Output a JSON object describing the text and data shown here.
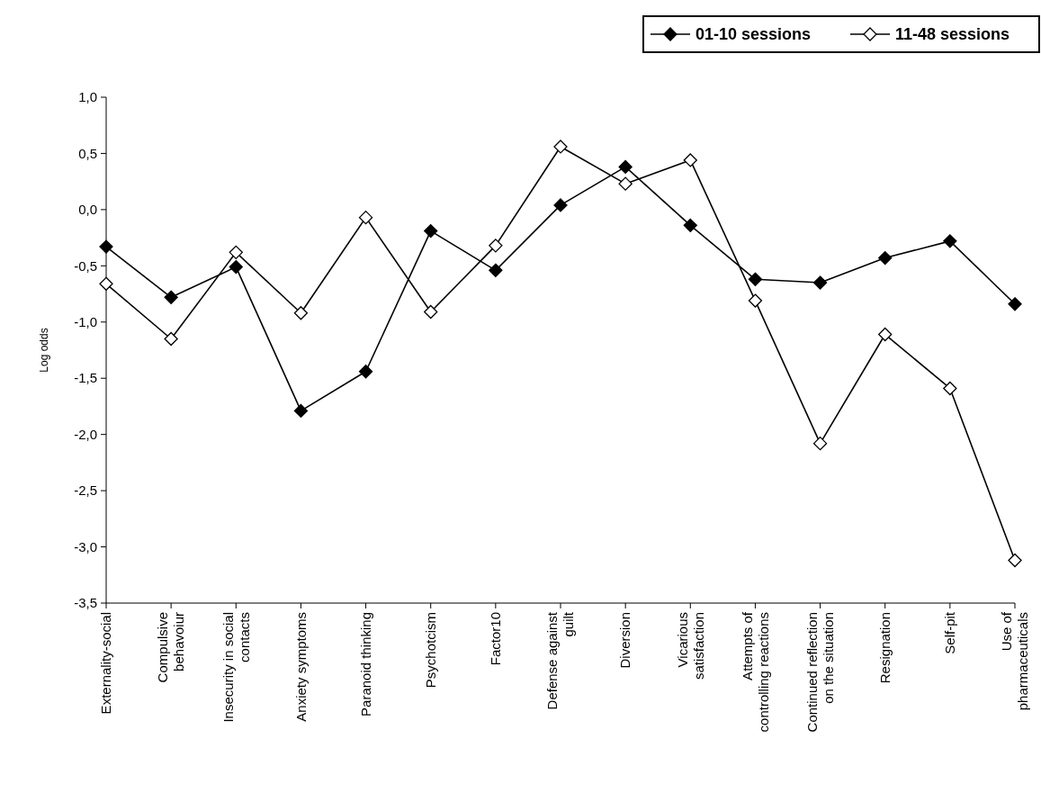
{
  "chart_data": {
    "type": "line",
    "ylabel": "Log odds",
    "categories": [
      "Externality-social",
      "Compulsive\nbehavoiur",
      "Insecurity in social\ncontacts",
      "Anxiety symptoms",
      "Paranoid thinking",
      "Psychotcism",
      "Factor10",
      "Defense against\nguilt",
      "Diversion",
      "Vicarious\nsatisfaction",
      "Attempts of\ncontrolling reactions",
      "Continued reflection\non the situation",
      "Resignation",
      "Self-pit",
      "Use of\npharmaceuticals"
    ],
    "series": [
      {
        "name": "01-10 sessions",
        "color": "#000000",
        "values": [
          -0.33,
          -0.78,
          -0.51,
          -1.79,
          -1.44,
          -0.19,
          -0.54,
          0.04,
          0.38,
          -0.14,
          -0.62,
          -0.65,
          -0.43,
          -0.28,
          -0.84
        ]
      },
      {
        "name": "11-48 sessions",
        "color": "#000000",
        "values": [
          -0.66,
          -1.15,
          -0.38,
          -0.92,
          -0.07,
          -0.91,
          -0.32,
          0.56,
          0.23,
          0.44,
          -0.81,
          -2.08,
          -1.11,
          -1.59,
          -3.12
        ]
      }
    ],
    "ylim": [
      -3.5,
      1.0
    ],
    "yticks": [
      {
        "value": 1.0,
        "label": "1,0"
      },
      {
        "value": 0.5,
        "label": "0,5"
      },
      {
        "value": 0,
        "label": "0,0"
      },
      {
        "value": -0.5,
        "label": "-0,5"
      },
      {
        "value": -1.0,
        "label": "-1,0"
      },
      {
        "value": -1.5,
        "label": "-1,5"
      },
      {
        "value": -2.0,
        "label": "-2,0"
      },
      {
        "value": -2.5,
        "label": "-2,5"
      },
      {
        "value": -3.0,
        "label": "-3,0"
      },
      {
        "value": -3.5,
        "label": "-3,5"
      }
    ],
    "grid": false,
    "legend": "top right",
    "marker": "diamond",
    "line_style": "solid"
  }
}
